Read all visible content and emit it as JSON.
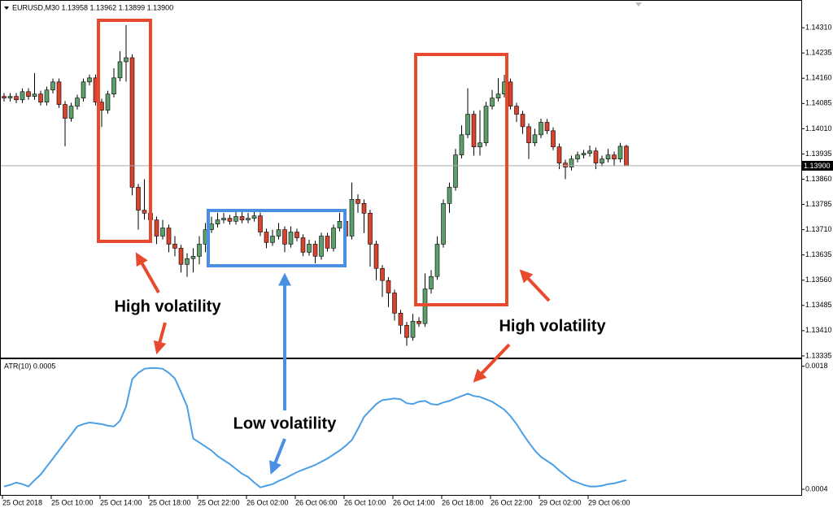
{
  "chart_data": [
    {
      "type": "candlestick",
      "header": "EURUSD,M30  1.13958 1.13962 1.13899 1.13900",
      "categories": [
        "25 Oct 2018",
        null,
        null,
        null,
        null,
        null,
        null,
        null,
        "25 Oct 10:00",
        null,
        null,
        null,
        null,
        null,
        null,
        null,
        "25 Oct 14:00",
        null,
        null,
        null,
        null,
        null,
        null,
        null,
        "25 Oct 18:00",
        null,
        null,
        null,
        null,
        null,
        null,
        null,
        "25 Oct 22:00",
        null,
        null,
        null,
        null,
        null,
        null,
        null,
        "26 Oct 02:00",
        null,
        null,
        null,
        null,
        null,
        null,
        null,
        "26 Oct 06:00",
        null,
        null,
        null,
        null,
        null,
        null,
        null,
        "26 Oct 10:00",
        null,
        null,
        null,
        null,
        null,
        null,
        null,
        "26 Oct 14:00",
        null,
        null,
        null,
        null,
        null,
        null,
        null,
        "26 Oct 18:00",
        null,
        null,
        null,
        null,
        null,
        null,
        null,
        "26 Oct 22:00",
        null,
        null,
        null,
        null,
        null,
        null,
        null,
        "29 Oct 02:00",
        null,
        null,
        null,
        null,
        null,
        null,
        null,
        "29 Oct 06:00",
        null,
        null,
        null,
        null,
        null,
        null
      ],
      "open": [
        1.14106,
        1.14101,
        1.14106,
        1.14096,
        1.1412,
        1.14106,
        1.14113,
        1.14089,
        1.14125,
        1.14149,
        1.14082,
        1.14041,
        1.14077,
        1.14101,
        1.14149,
        1.14161,
        1.14089,
        1.14065,
        1.14113,
        1.14161,
        1.14209,
        1.14221,
        1.13836,
        1.13768,
        1.13759,
        1.13739,
        1.13691,
        1.13715,
        1.13667,
        1.13655,
        1.13607,
        1.13624,
        1.13631,
        1.13667,
        1.1371,
        1.13727,
        1.13739,
        1.13744,
        1.13735,
        1.13749,
        1.13739,
        1.13744,
        1.13751,
        1.13703,
        1.13672,
        1.13691,
        1.1371,
        1.13667,
        1.13703,
        1.13686,
        1.13643,
        1.13667,
        1.13631,
        1.13691,
        1.13655,
        1.13715,
        1.13735,
        1.13691,
        1.138,
        1.13788,
        1.13759,
        1.13667,
        1.13595,
        1.13559,
        1.13522,
        1.13462,
        1.13426,
        1.1339,
        1.13438,
        1.13431,
        1.13534,
        1.13571,
        1.13667,
        1.13788,
        1.13836,
        1.13932,
        1.13992,
        1.14053,
        1.13956,
        1.13968,
        1.14077,
        1.14101,
        1.14113,
        1.14149,
        1.14077,
        1.14053,
        1.14016,
        1.13968,
        1.13992,
        1.14029,
        1.14004,
        1.13956,
        1.13908,
        1.13896,
        1.1392,
        1.13932,
        1.13937,
        1.13944,
        1.13908,
        1.1392,
        1.13932,
        1.1392,
        1.13958
      ],
      "high": [
        1.14116,
        1.14116,
        1.14116,
        1.1413,
        1.1413,
        1.14175,
        1.14123,
        1.14135,
        1.14159,
        1.14159,
        1.14092,
        1.14087,
        1.14111,
        1.14159,
        1.14171,
        1.14171,
        1.14099,
        1.14123,
        1.1419,
        1.1424,
        1.14318,
        1.14231,
        1.13846,
        1.1386,
        1.13769,
        1.13749,
        1.13739,
        1.13725,
        1.13691,
        1.13665,
        1.1364,
        1.13655,
        1.13691,
        1.1373,
        1.13749,
        1.1376,
        1.1376,
        1.13754,
        1.13764,
        1.13764,
        1.1376,
        1.13766,
        1.13761,
        1.13713,
        1.1371,
        1.1373,
        1.1372,
        1.1372,
        1.13713,
        1.13696,
        1.1368,
        1.13677,
        1.13701,
        1.13701,
        1.13725,
        1.1376,
        1.13745,
        1.1385,
        1.13815,
        1.138,
        1.13769,
        1.13677,
        1.13605,
        1.13569,
        1.13532,
        1.13472,
        1.13436,
        1.1346,
        1.1345,
        1.1358,
        1.1359,
        1.1369,
        1.138,
        1.1385,
        1.1395,
        1.1402,
        1.1413,
        1.14063,
        1.14065,
        1.1409,
        1.14125,
        1.1416,
        1.1417,
        1.14159,
        1.14087,
        1.14063,
        1.14026,
        1.1401,
        1.1404,
        1.14039,
        1.14014,
        1.13966,
        1.13918,
        1.1393,
        1.13942,
        1.13947,
        1.1396,
        1.13954,
        1.1393,
        1.1395,
        1.13942,
        1.13968,
        1.13962
      ],
      "low": [
        1.14091,
        1.14091,
        1.14086,
        1.14086,
        1.14096,
        1.14096,
        1.14079,
        1.14079,
        1.14115,
        1.14072,
        1.13958,
        1.14031,
        1.14067,
        1.14091,
        1.14139,
        1.14079,
        1.14015,
        1.14055,
        1.14103,
        1.14151,
        1.1415,
        1.13812,
        1.1371,
        1.1374,
        1.13715,
        1.13667,
        1.13681,
        1.13643,
        1.13631,
        1.13583,
        1.1357,
        1.13583,
        1.13607,
        1.13643,
        1.137,
        1.13717,
        1.13729,
        1.13725,
        1.13725,
        1.13729,
        1.13729,
        1.13734,
        1.13691,
        1.13655,
        1.13662,
        1.13681,
        1.13643,
        1.13657,
        1.13676,
        1.13631,
        1.13633,
        1.1361,
        1.13621,
        1.13645,
        1.13645,
        1.13705,
        1.13681,
        1.13681,
        1.1376,
        1.137,
        1.136,
        1.1356,
        1.1351,
        1.1348,
        1.1344,
        1.134,
        1.13365,
        1.1338,
        1.13421,
        1.13421,
        1.1352,
        1.13561,
        1.13657,
        1.1376,
        1.13826,
        1.13922,
        1.13982,
        1.1393,
        1.1393,
        1.13958,
        1.14067,
        1.14091,
        1.14103,
        1.14067,
        1.1403,
        1.13995,
        1.1392,
        1.13958,
        1.13982,
        1.13994,
        1.13946,
        1.1389,
        1.1386,
        1.13886,
        1.1391,
        1.13922,
        1.13927,
        1.1389,
        1.13898,
        1.1391,
        1.139,
        1.1391,
        1.13899
      ],
      "close": [
        1.14101,
        1.14106,
        1.14096,
        1.1412,
        1.14106,
        1.14113,
        1.14089,
        1.14125,
        1.14149,
        1.14082,
        1.14041,
        1.14077,
        1.14101,
        1.14149,
        1.14161,
        1.14089,
        1.14065,
        1.14113,
        1.14161,
        1.14209,
        1.14221,
        1.13836,
        1.13768,
        1.13759,
        1.13739,
        1.13691,
        1.13715,
        1.13667,
        1.13655,
        1.13607,
        1.13624,
        1.13631,
        1.13667,
        1.1371,
        1.13727,
        1.13739,
        1.13744,
        1.13735,
        1.13749,
        1.13739,
        1.13744,
        1.13751,
        1.13703,
        1.13672,
        1.13691,
        1.1371,
        1.13667,
        1.13703,
        1.13686,
        1.13643,
        1.13667,
        1.13631,
        1.13691,
        1.13655,
        1.13715,
        1.13735,
        1.13691,
        1.138,
        1.13788,
        1.13759,
        1.13667,
        1.13595,
        1.13559,
        1.13522,
        1.13462,
        1.13426,
        1.1339,
        1.13438,
        1.13431,
        1.13534,
        1.13571,
        1.13667,
        1.13788,
        1.13836,
        1.13932,
        1.13992,
        1.14053,
        1.13956,
        1.13968,
        1.14077,
        1.14101,
        1.14113,
        1.14149,
        1.14077,
        1.14053,
        1.14016,
        1.13968,
        1.13992,
        1.14029,
        1.14004,
        1.13956,
        1.13908,
        1.13896,
        1.1392,
        1.13932,
        1.13937,
        1.13944,
        1.13908,
        1.1392,
        1.13932,
        1.1392,
        1.13958,
        1.139
      ],
      "up_color": "#5c9e6c",
      "down_color": "#d8432f",
      "current_price": {
        "value": 1.139,
        "label": "1.13900"
      },
      "ylim": [
        1.1333,
        1.1439
      ],
      "yticks": [
        {
          "value": 1.1431,
          "label": "1.14310"
        },
        {
          "value": 1.14235,
          "label": "1.14235"
        },
        {
          "value": 1.1416,
          "label": "1.14160"
        },
        {
          "value": 1.14085,
          "label": "1.14085"
        },
        {
          "value": 1.1401,
          "label": "1.14010"
        },
        {
          "value": 1.13935,
          "label": "1.13935"
        },
        {
          "value": 1.1386,
          "label": "1.13860"
        },
        {
          "value": 1.13785,
          "label": "1.13785"
        },
        {
          "value": 1.1371,
          "label": "1.13710"
        },
        {
          "value": 1.13635,
          "label": "1.13635"
        },
        {
          "value": 1.1356,
          "label": "1.13560"
        },
        {
          "value": 1.13485,
          "label": "1.13485"
        },
        {
          "value": 1.1341,
          "label": "1.13410"
        },
        {
          "value": 1.13335,
          "label": "1.13335"
        }
      ]
    },
    {
      "type": "line",
      "title": "ATR(10) 0.0005",
      "color": "#4a9fe6",
      "values": [
        0.000432,
        0.00045,
        0.000477,
        0.000459,
        0.000432,
        0.000504,
        0.000568,
        0.000659,
        0.00075,
        0.000841,
        0.000933,
        0.001024,
        0.001115,
        0.001142,
        0.00116,
        0.001151,
        0.001142,
        0.001124,
        0.001115,
        0.001179,
        0.001343,
        0.001652,
        0.001725,
        0.001771,
        0.00178,
        0.00178,
        0.001771,
        0.001725,
        0.001661,
        0.001506,
        0.001343,
        0.000978,
        0.000933,
        0.000887,
        0.000841,
        0.000778,
        0.000732,
        0.000687,
        0.000632,
        0.000577,
        0.000541,
        0.000477,
        0.000422,
        0.000441,
        0.000459,
        0.000495,
        0.000523,
        0.000559,
        0.000595,
        0.000623,
        0.00065,
        0.000677,
        0.000714,
        0.00075,
        0.000796,
        0.000841,
        0.000896,
        0.00096,
        0.001087,
        0.001224,
        0.001297,
        0.00137,
        0.001415,
        0.001424,
        0.001434,
        0.001424,
        0.001379,
        0.00137,
        0.001397,
        0.001406,
        0.00137,
        0.001361,
        0.001388,
        0.001406,
        0.001434,
        0.001461,
        0.001488,
        0.001461,
        0.001452,
        0.001424,
        0.001397,
        0.001352,
        0.001306,
        0.001233,
        0.001142,
        0.001033,
        0.000933,
        0.000841,
        0.000769,
        0.000723,
        0.000677,
        0.000614,
        0.000559,
        0.000504,
        0.000477,
        0.00045,
        0.000432,
        0.000432,
        0.000441,
        0.000459,
        0.000468,
        0.000486,
        0.000504
      ],
      "ylim": [
        0.000336,
        0.00188
      ],
      "yticks": [
        0.0018,
        0.0004
      ]
    }
  ],
  "annotations": [
    "High volatility",
    "Low volatility",
    "High volatility"
  ]
}
